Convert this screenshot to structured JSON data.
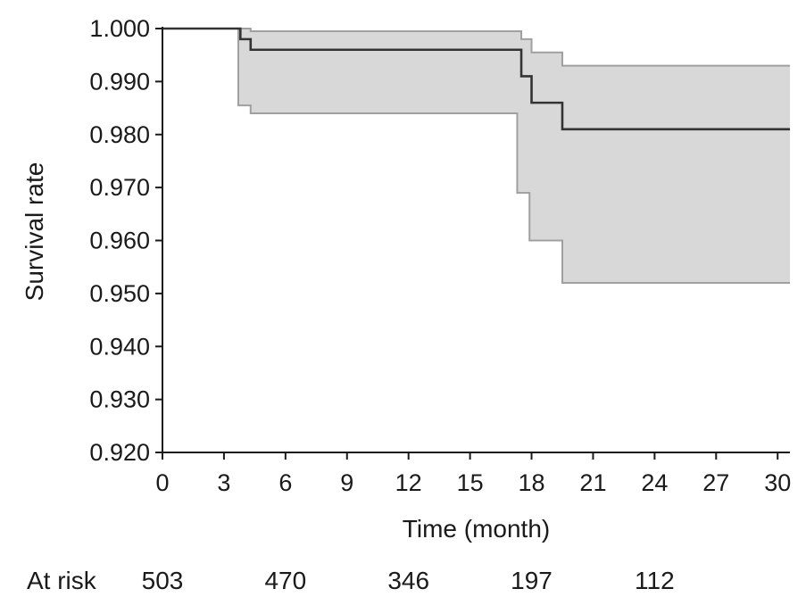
{
  "chart_data": {
    "type": "line",
    "title": "",
    "xlabel": "Time (month)",
    "ylabel": "Survival rate",
    "xlim": [
      0,
      30.6
    ],
    "ylim": [
      0.92,
      1.0
    ],
    "x_ticks": [
      0,
      3,
      6,
      9,
      12,
      15,
      18,
      21,
      24,
      27,
      30
    ],
    "y_ticks": [
      0.92,
      0.93,
      0.94,
      0.95,
      0.96,
      0.97,
      0.98,
      0.99,
      1.0
    ],
    "y_tick_labels": [
      "0.920",
      "0.930",
      "0.940",
      "0.950",
      "0.960",
      "0.970",
      "0.980",
      "0.990",
      "1.000"
    ],
    "grid": false,
    "series": [
      {
        "role": "estimate",
        "step": true,
        "x": [
          0,
          3.8,
          4.3,
          17.5,
          18.0,
          19.5,
          30.6
        ],
        "y": [
          1.0,
          0.998,
          0.996,
          0.991,
          0.986,
          0.981,
          0.981
        ]
      },
      {
        "role": "upper_ci",
        "step": true,
        "x": [
          0,
          3.8,
          4.3,
          17.5,
          18.0,
          19.5,
          30.6
        ],
        "y": [
          1.0,
          1.0,
          0.9995,
          0.998,
          0.9955,
          0.993,
          0.993
        ]
      },
      {
        "role": "lower_ci",
        "step": true,
        "x": [
          0,
          3.7,
          4.3,
          17.3,
          17.9,
          19.5,
          30.6
        ],
        "y": [
          1.0,
          0.9855,
          0.984,
          0.969,
          0.96,
          0.952,
          0.952
        ]
      }
    ],
    "colors": {
      "estimate": "#333333",
      "ci_line": "#a0a0a0",
      "ci_fill": "#d8d8d8",
      "axis": "#1a1a1a"
    },
    "at_risk": {
      "label": "At risk",
      "values": [
        "503",
        "470",
        "346",
        "197",
        "112"
      ],
      "times": [
        0,
        6,
        12,
        18,
        24
      ]
    }
  }
}
